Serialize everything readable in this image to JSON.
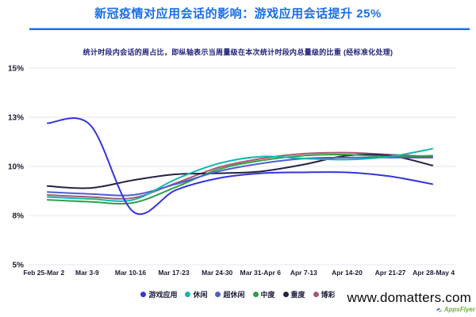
{
  "page": {
    "title": "新冠疫情对应用会话的影响：游戏应用会话提升 25%",
    "subtitle": "统计时段内会话的周占比，即纵轴表示当周量级在本次统计时段内总量级的比重 (经标准化处理)",
    "title_color": "#1a6ee8",
    "subtitle_color": "#22227a",
    "divider_color": "#1d6fe6"
  },
  "watermark": {
    "site": "www.domatters.com",
    "logo_text": "AppsFlyer"
  },
  "chart_data": {
    "type": "line",
    "title": "新冠疫情对应用会话的影响：游戏应用会话提升 25%",
    "subtitle": "统计时段内会话的周占比，即纵轴表示当周量级在本次统计时段内总量级的比重 (经标准化处理)",
    "xlabel": "",
    "ylabel": "",
    "grid": true,
    "legend_position": "bottom",
    "ylim": [
      5,
      15
    ],
    "y_ticks": [
      {
        "label": "15%",
        "value": 15
      },
      {
        "label": "13%",
        "value": 12.5
      },
      {
        "label": "10%",
        "value": 10
      },
      {
        "label": "8%",
        "value": 7.5
      },
      {
        "label": "5%",
        "value": 5
      }
    ],
    "categories": [
      "Feb 25-Mar 2",
      "Mar 3-9",
      "Mar 10-16",
      "Mar 17-23",
      "Mar 24-30",
      "Mar 31-Apr 6",
      "Apr 7-13",
      "Apr 14-20",
      "Apr 21-27",
      "Apr 28-May 4"
    ],
    "series": [
      {
        "name": "游戏应用",
        "color": "#3434dd",
        "values": [
          12.2,
          12.1,
          7.7,
          8.8,
          9.4,
          9.65,
          9.7,
          9.7,
          9.5,
          9.1
        ]
      },
      {
        "name": "休闲",
        "color": "#12b7ae",
        "values": [
          8.45,
          8.35,
          8.3,
          9.35,
          10.15,
          10.5,
          10.4,
          10.35,
          10.5,
          10.9
        ]
      },
      {
        "name": "超休闲",
        "color": "#4a5fd0",
        "values": [
          8.7,
          8.6,
          8.55,
          9.1,
          9.75,
          10.15,
          10.4,
          10.45,
          10.45,
          10.45
        ]
      },
      {
        "name": "中度",
        "color": "#2f9e49",
        "values": [
          8.3,
          8.2,
          8.15,
          8.95,
          9.85,
          10.3,
          10.55,
          10.6,
          10.5,
          10.55
        ]
      },
      {
        "name": "重度",
        "color": "#23233f",
        "values": [
          9.0,
          8.9,
          9.3,
          9.6,
          9.65,
          9.75,
          10.1,
          10.55,
          10.55,
          10.05
        ]
      },
      {
        "name": "博彩",
        "color": "#a65874",
        "values": [
          8.55,
          8.45,
          8.4,
          9.15,
          9.95,
          10.4,
          10.65,
          10.7,
          10.6,
          10.5
        ]
      }
    ],
    "gridline_color": "#e4e4f1",
    "tick_label_color": "#1c1c30"
  }
}
